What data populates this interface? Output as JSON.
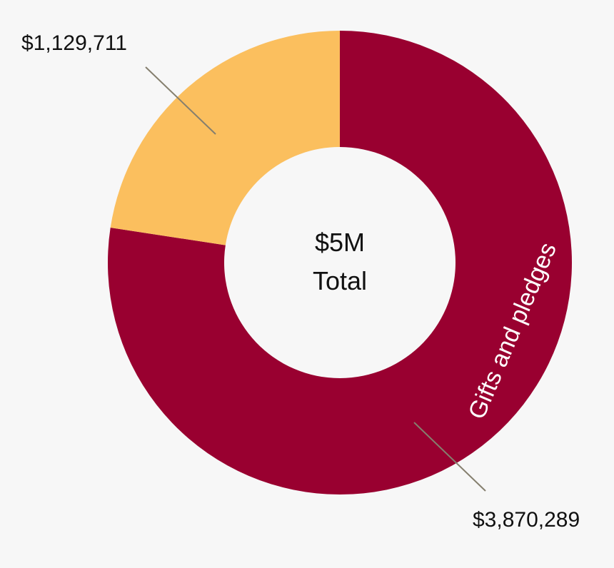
{
  "chart_data": {
    "type": "pie",
    "center_label": [
      "$5M",
      "Total"
    ],
    "slices": [
      {
        "label": "Gifts and pledges",
        "value": 3870289,
        "display_value": "$3,870,289",
        "color": "#990030"
      },
      {
        "label": "",
        "value": 1129711,
        "display_value": "$1,129,711",
        "color": "#fbbf5e"
      }
    ]
  },
  "colors": {
    "background": "#f7f7f7",
    "leader_line": "#857f6e",
    "center_text": "#111111",
    "arc_text": "#ffffff"
  }
}
